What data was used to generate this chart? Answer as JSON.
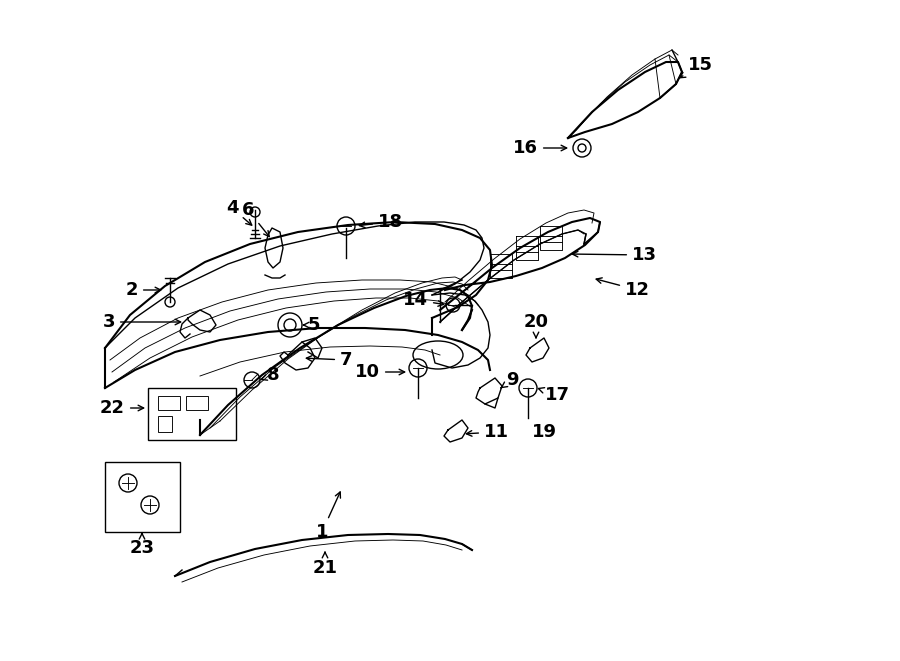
{
  "bg": "#ffffff",
  "lc": "#000000",
  "lw1": 1.5,
  "lw2": 1.0,
  "lw3": 0.65,
  "fs": 13
}
